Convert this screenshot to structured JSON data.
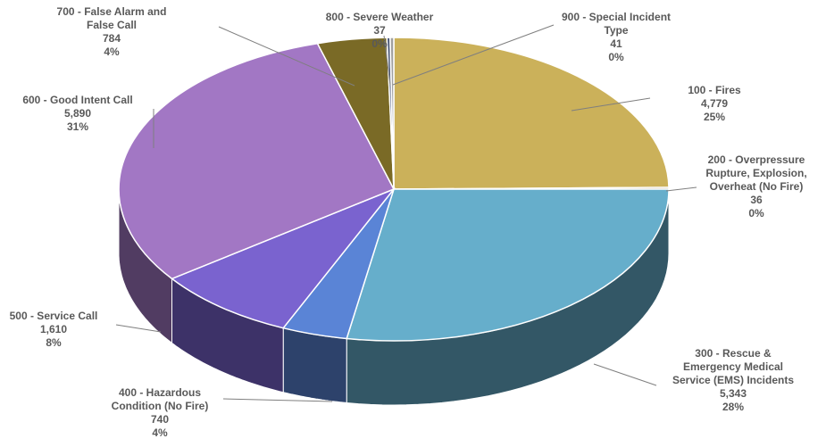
{
  "chart_data": {
    "type": "pie",
    "style": "3d",
    "legend": "none",
    "slices": [
      {
        "lines": [
          "100 - Fires"
        ],
        "value": "4,779",
        "percent": "25%",
        "color": "#cbb15a"
      },
      {
        "lines": [
          "200 - Overpressure",
          "Rupture, Explosion,",
          "Overheat (No Fire)"
        ],
        "value": "36",
        "percent": "0%",
        "color": "#8d7a3c"
      },
      {
        "lines": [
          "300 - Rescue &",
          "Emergency Medical",
          "Service (EMS) Incidents"
        ],
        "value": "5,343",
        "percent": "28%",
        "color": "#66aecb"
      },
      {
        "lines": [
          "400 - Hazardous",
          "Condition (No Fire)"
        ],
        "value": "740",
        "percent": "4%",
        "color": "#5a84d6"
      },
      {
        "lines": [
          "500 - Service Call"
        ],
        "value": "1,610",
        "percent": "8%",
        "color": "#7a63cf"
      },
      {
        "lines": [
          "600 - Good Intent Call"
        ],
        "value": "5,890",
        "percent": "31%",
        "color": "#a277c4"
      },
      {
        "lines": [
          "700 - False Alarm and",
          "False Call"
        ],
        "value": "784",
        "percent": "4%",
        "color": "#7a6a26"
      },
      {
        "lines": [
          "800 - Severe Weather"
        ],
        "value": "37",
        "percent": "0%",
        "color": "#4d5a7a"
      },
      {
        "lines": [
          "900 - Special Incident",
          "Type"
        ],
        "value": "41",
        "percent": "0%",
        "color": "#a0a0a0"
      }
    ]
  }
}
